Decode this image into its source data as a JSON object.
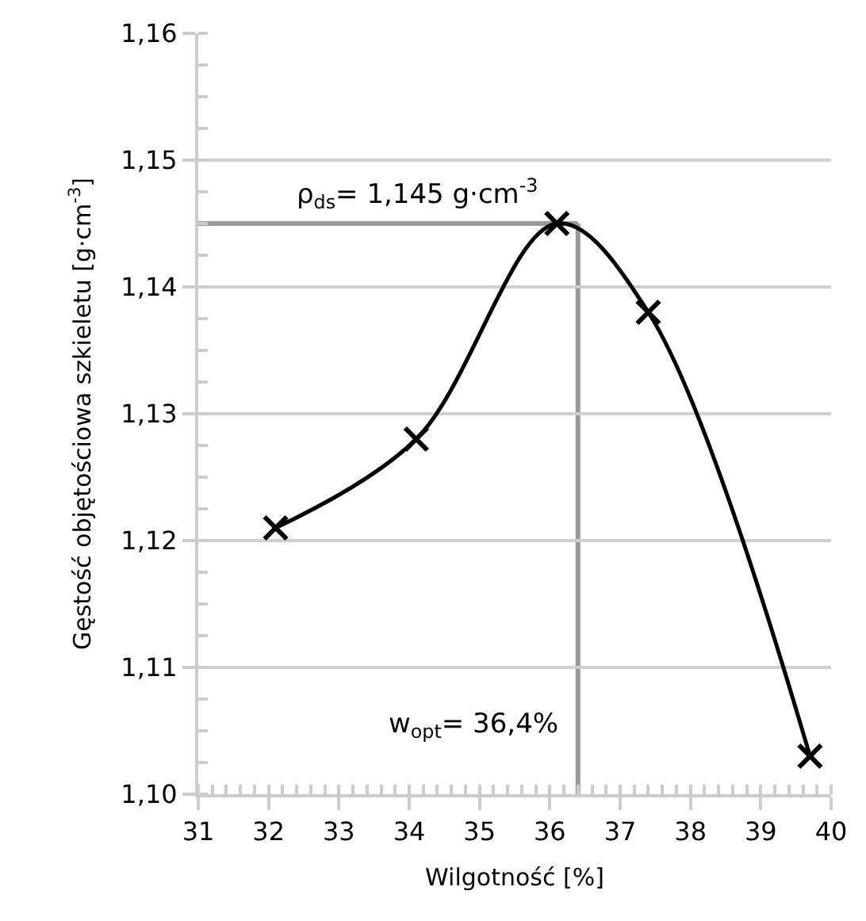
{
  "chart_data": {
    "type": "line",
    "xlabel": "Wilgotność [%]",
    "ylabel": "Gęstość objętościowa szkieletu [g·cm$^{-3}$]",
    "x": [
      32.1,
      34.1,
      36.1,
      37.4,
      39.7
    ],
    "series": [
      {
        "color": "#000000",
        "values": [
          1.121,
          1.128,
          1.145,
          1.138,
          1.103
        ]
      }
    ],
    "marker": "cross",
    "grid": "y",
    "xlim": [
      31,
      40
    ],
    "xticks": [
      31,
      32,
      33,
      34,
      35,
      36,
      37,
      38,
      39,
      40
    ],
    "ylim": [
      1.1,
      1.16
    ],
    "yticks": [
      {
        "value": 1.1,
        "label": "1,10"
      },
      {
        "value": 1.11,
        "label": "1,11"
      },
      {
        "value": 1.12,
        "label": "1,12"
      },
      {
        "value": 1.13,
        "label": "1,13"
      },
      {
        "value": 1.14,
        "label": "1,14"
      },
      {
        "value": 1.15,
        "label": "1,15"
      },
      {
        "value": 1.16,
        "label": "1,16"
      }
    ],
    "ref_lines": [
      {
        "axis": "y",
        "value": 1.145,
        "label": "ρ$_{ds}$= 1,145 g·cm$^{-3}$",
        "color": "#999999"
      },
      {
        "axis": "x",
        "value": 36.4,
        "label": "w$_{opt}$= 36,4%",
        "color": "#999999"
      }
    ]
  }
}
